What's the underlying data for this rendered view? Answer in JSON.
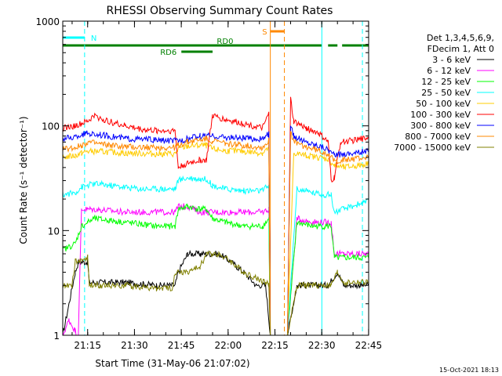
{
  "chart_data": {
    "type": "line",
    "title": "RHESSI Observing Summary Count Rates",
    "xlabel": "Start Time (31-May-06 21:07:02)",
    "ylabel": "Count Rate (s⁻¹ detector⁻¹)",
    "ylog": true,
    "ylim": [
      1,
      1000
    ],
    "xlim_minutes": [
      0,
      98
    ],
    "x_tick_labels": [
      "21:15",
      "21:30",
      "21:45",
      "22:00",
      "22:15",
      "22:30",
      "22:45"
    ],
    "x_tick_minutes": [
      7.97,
      22.97,
      37.97,
      52.97,
      67.97,
      82.97,
      97.97
    ],
    "y_tick_labels": [
      "1",
      "10",
      "100",
      "1000"
    ],
    "y_tick_values": [
      1,
      10,
      100,
      1000
    ],
    "legend_position": "right",
    "legend_header": [
      "Det 1,3,4,5,6,9,",
      "FDecim 1, Att 0"
    ],
    "series": [
      {
        "name": "3 - 6 keV",
        "color": "#000000",
        "points": [
          [
            0,
            1
          ],
          [
            4,
            4
          ],
          [
            5,
            5
          ],
          [
            8,
            5
          ],
          [
            8.5,
            3.2
          ],
          [
            12,
            3.2
          ],
          [
            20,
            3.2
          ],
          [
            30,
            3
          ],
          [
            36,
            3
          ],
          [
            37,
            4
          ],
          [
            40,
            6
          ],
          [
            44,
            6
          ],
          [
            50,
            6
          ],
          [
            54,
            5
          ],
          [
            58,
            4
          ],
          [
            62,
            3
          ],
          [
            65,
            3
          ],
          [
            66.5,
            1
          ],
          [
            67,
            1
          ],
          [
            72,
            1
          ],
          [
            75,
            3
          ],
          [
            78,
            3
          ],
          [
            82,
            3
          ],
          [
            85,
            3
          ],
          [
            88,
            4
          ],
          [
            90,
            3
          ],
          [
            95,
            3
          ],
          [
            98,
            3
          ]
        ]
      },
      {
        "name": "6 - 12 keV",
        "color": "#ff00ff",
        "points": [
          [
            0,
            1
          ],
          [
            2,
            1.4
          ],
          [
            4,
            1.1
          ],
          [
            5,
            1
          ],
          [
            6,
            16
          ],
          [
            8,
            16
          ],
          [
            10,
            16
          ],
          [
            20,
            15
          ],
          [
            30,
            15
          ],
          [
            36,
            15
          ],
          [
            37,
            17
          ],
          [
            40,
            17
          ],
          [
            44,
            15
          ],
          [
            52,
            15
          ],
          [
            58,
            15
          ],
          [
            64,
            15
          ],
          [
            66,
            16
          ],
          [
            66.5,
            1
          ],
          [
            67,
            1
          ],
          [
            72,
            1
          ],
          [
            75,
            13
          ],
          [
            80,
            12
          ],
          [
            84,
            12
          ],
          [
            86,
            12
          ],
          [
            87,
            6
          ],
          [
            90,
            6
          ],
          [
            95,
            6
          ],
          [
            98,
            6
          ]
        ]
      },
      {
        "name": "12 - 25 keV",
        "color": "#00ff00",
        "points": [
          [
            0,
            6.5
          ],
          [
            4,
            7.5
          ],
          [
            6,
            11
          ],
          [
            8,
            12
          ],
          [
            10,
            13
          ],
          [
            15,
            12.5
          ],
          [
            20,
            12
          ],
          [
            25,
            11.5
          ],
          [
            30,
            11
          ],
          [
            36,
            11
          ],
          [
            37,
            16
          ],
          [
            40,
            17
          ],
          [
            44,
            16
          ],
          [
            46,
            16
          ],
          [
            48,
            13
          ],
          [
            52,
            12
          ],
          [
            58,
            11
          ],
          [
            64,
            11
          ],
          [
            66,
            13
          ],
          [
            66.5,
            1
          ],
          [
            67,
            1
          ],
          [
            72,
            1
          ],
          [
            75,
            12
          ],
          [
            80,
            11
          ],
          [
            84,
            11
          ],
          [
            86,
            11
          ],
          [
            87,
            5.5
          ],
          [
            90,
            5.5
          ],
          [
            95,
            5.5
          ],
          [
            98,
            5.5
          ]
        ]
      },
      {
        "name": "25 - 50 keV",
        "color": "#00ffff",
        "points": [
          [
            0,
            22
          ],
          [
            4,
            23
          ],
          [
            6,
            26
          ],
          [
            8,
            27
          ],
          [
            10,
            28
          ],
          [
            15,
            27
          ],
          [
            20,
            26
          ],
          [
            25,
            25
          ],
          [
            30,
            25
          ],
          [
            36,
            25
          ],
          [
            37,
            30
          ],
          [
            40,
            32
          ],
          [
            44,
            31
          ],
          [
            46,
            31
          ],
          [
            48,
            27
          ],
          [
            52,
            25
          ],
          [
            58,
            24
          ],
          [
            64,
            24
          ],
          [
            66,
            27
          ],
          [
            66.5,
            1
          ],
          [
            67,
            1
          ],
          [
            72,
            1
          ],
          [
            75,
            25
          ],
          [
            80,
            23
          ],
          [
            84,
            22
          ],
          [
            86,
            22
          ],
          [
            87,
            15
          ],
          [
            90,
            16
          ],
          [
            95,
            18
          ],
          [
            98,
            19
          ]
        ]
      },
      {
        "name": "50 - 100 keV",
        "color": "#ffcc00",
        "points": [
          [
            0,
            50
          ],
          [
            4,
            52
          ],
          [
            6,
            55
          ],
          [
            8,
            57
          ],
          [
            12,
            57
          ],
          [
            20,
            55
          ],
          [
            30,
            54
          ],
          [
            36,
            54
          ],
          [
            37,
            60
          ],
          [
            40,
            64
          ],
          [
            44,
            65
          ],
          [
            46,
            65
          ],
          [
            48,
            60
          ],
          [
            52,
            58
          ],
          [
            58,
            57
          ],
          [
            64,
            55
          ],
          [
            66,
            62
          ],
          [
            66.5,
            1
          ],
          [
            67,
            1
          ],
          [
            72,
            1
          ],
          [
            74,
            55
          ],
          [
            78,
            52
          ],
          [
            82,
            50
          ],
          [
            85,
            48
          ],
          [
            87,
            42
          ],
          [
            90,
            40
          ],
          [
            95,
            42
          ],
          [
            98,
            44
          ]
        ]
      },
      {
        "name": "100 - 300 keV",
        "color": "#ff0000",
        "points": [
          [
            0,
            95
          ],
          [
            4,
            100
          ],
          [
            6,
            105
          ],
          [
            8,
            110
          ],
          [
            10,
            125
          ],
          [
            14,
            112
          ],
          [
            20,
            100
          ],
          [
            26,
            92
          ],
          [
            30,
            90
          ],
          [
            36,
            90
          ],
          [
            37,
            40
          ],
          [
            40,
            44
          ],
          [
            44,
            47
          ],
          [
            46,
            47
          ],
          [
            48,
            125
          ],
          [
            52,
            115
          ],
          [
            58,
            105
          ],
          [
            64,
            95
          ],
          [
            66,
            130
          ],
          [
            66.5,
            1
          ],
          [
            67,
            1
          ],
          [
            72,
            1
          ],
          [
            73,
            180
          ],
          [
            74,
            110
          ],
          [
            78,
            95
          ],
          [
            82,
            85
          ],
          [
            85,
            70
          ],
          [
            86,
            30
          ],
          [
            87,
            32
          ],
          [
            89,
            70
          ],
          [
            92,
            72
          ],
          [
            95,
            74
          ],
          [
            98,
            78
          ]
        ]
      },
      {
        "name": "300 - 800 keV",
        "color": "#0000ff",
        "points": [
          [
            0,
            75
          ],
          [
            4,
            78
          ],
          [
            6,
            82
          ],
          [
            8,
            85
          ],
          [
            12,
            82
          ],
          [
            20,
            76
          ],
          [
            30,
            73
          ],
          [
            36,
            72
          ],
          [
            37,
            72
          ],
          [
            40,
            75
          ],
          [
            44,
            80
          ],
          [
            46,
            80
          ],
          [
            48,
            80
          ],
          [
            52,
            78
          ],
          [
            58,
            76
          ],
          [
            64,
            75
          ],
          [
            66,
            85
          ],
          [
            66.5,
            1
          ],
          [
            67,
            1
          ],
          [
            72,
            1
          ],
          [
            73,
            100
          ],
          [
            74,
            80
          ],
          [
            78,
            70
          ],
          [
            82,
            65
          ],
          [
            85,
            60
          ],
          [
            87,
            52
          ],
          [
            90,
            54
          ],
          [
            95,
            56
          ],
          [
            98,
            58
          ]
        ]
      },
      {
        "name": "800 - 7000 keV",
        "color": "#ff8800",
        "points": [
          [
            0,
            60
          ],
          [
            4,
            62
          ],
          [
            6,
            65
          ],
          [
            8,
            70
          ],
          [
            12,
            67
          ],
          [
            20,
            63
          ],
          [
            30,
            62
          ],
          [
            36,
            62
          ],
          [
            37,
            65
          ],
          [
            40,
            70
          ],
          [
            44,
            74
          ],
          [
            46,
            75
          ],
          [
            48,
            72
          ],
          [
            52,
            68
          ],
          [
            58,
            65
          ],
          [
            64,
            62
          ],
          [
            66,
            72
          ],
          [
            66.5,
            1
          ],
          [
            67,
            1
          ],
          [
            72,
            1
          ],
          [
            73,
            90
          ],
          [
            74,
            70
          ],
          [
            78,
            63
          ],
          [
            82,
            58
          ],
          [
            85,
            54
          ],
          [
            87,
            46
          ],
          [
            90,
            47
          ],
          [
            95,
            49
          ],
          [
            98,
            50
          ]
        ]
      },
      {
        "name": "7000 - 15000 keV",
        "color": "#808000",
        "points": [
          [
            0,
            3
          ],
          [
            3,
            3
          ],
          [
            4,
            5
          ],
          [
            8,
            5.5
          ],
          [
            8.5,
            3
          ],
          [
            12,
            3
          ],
          [
            20,
            3
          ],
          [
            30,
            2.8
          ],
          [
            35,
            2.8
          ],
          [
            36,
            4
          ],
          [
            40,
            4
          ],
          [
            44,
            4.5
          ],
          [
            46,
            6
          ],
          [
            50,
            6
          ],
          [
            54,
            5
          ],
          [
            58,
            4
          ],
          [
            62,
            3.5
          ],
          [
            65,
            3.2
          ],
          [
            66,
            3
          ],
          [
            66.5,
            1
          ],
          [
            67,
            1
          ],
          [
            72,
            1
          ],
          [
            75,
            3
          ],
          [
            80,
            3
          ],
          [
            84,
            3
          ],
          [
            86,
            3
          ],
          [
            88,
            4
          ],
          [
            90,
            3.2
          ],
          [
            95,
            3.2
          ],
          [
            98,
            3.2
          ]
        ]
      }
    ],
    "state_bars": [
      {
        "label": "N",
        "color": "#00ffff",
        "segments": [
          [
            0,
            7
          ]
        ],
        "level": "upper"
      },
      {
        "label": "S",
        "color": "#ff8800",
        "segments": [
          [
            66.5,
            71
          ]
        ],
        "level": "top"
      },
      {
        "label": "RD0",
        "color": "#008000",
        "segments": [
          [
            0,
            83
          ],
          [
            85,
            88
          ],
          [
            89.5,
            98
          ]
        ],
        "level": "mid"
      },
      {
        "label": "RD6",
        "color": "#008000",
        "segments": [
          [
            38,
            48
          ]
        ],
        "level": "lower"
      }
    ],
    "vertical_lines": [
      {
        "color": "#00ffff",
        "style": "solid",
        "minute": 0
      },
      {
        "color": "#00ffff",
        "style": "dashed",
        "minute": 7
      },
      {
        "color": "#ff8800",
        "style": "solid",
        "minute": 66.5
      },
      {
        "color": "#ff8800",
        "style": "dashed",
        "minute": 71
      },
      {
        "color": "#00ffff",
        "style": "solid",
        "minute": 83
      },
      {
        "color": "#00ffff",
        "style": "dashed",
        "minute": 96
      }
    ]
  },
  "footer": {
    "timestamp": "15-Oct-2021 18:13"
  }
}
